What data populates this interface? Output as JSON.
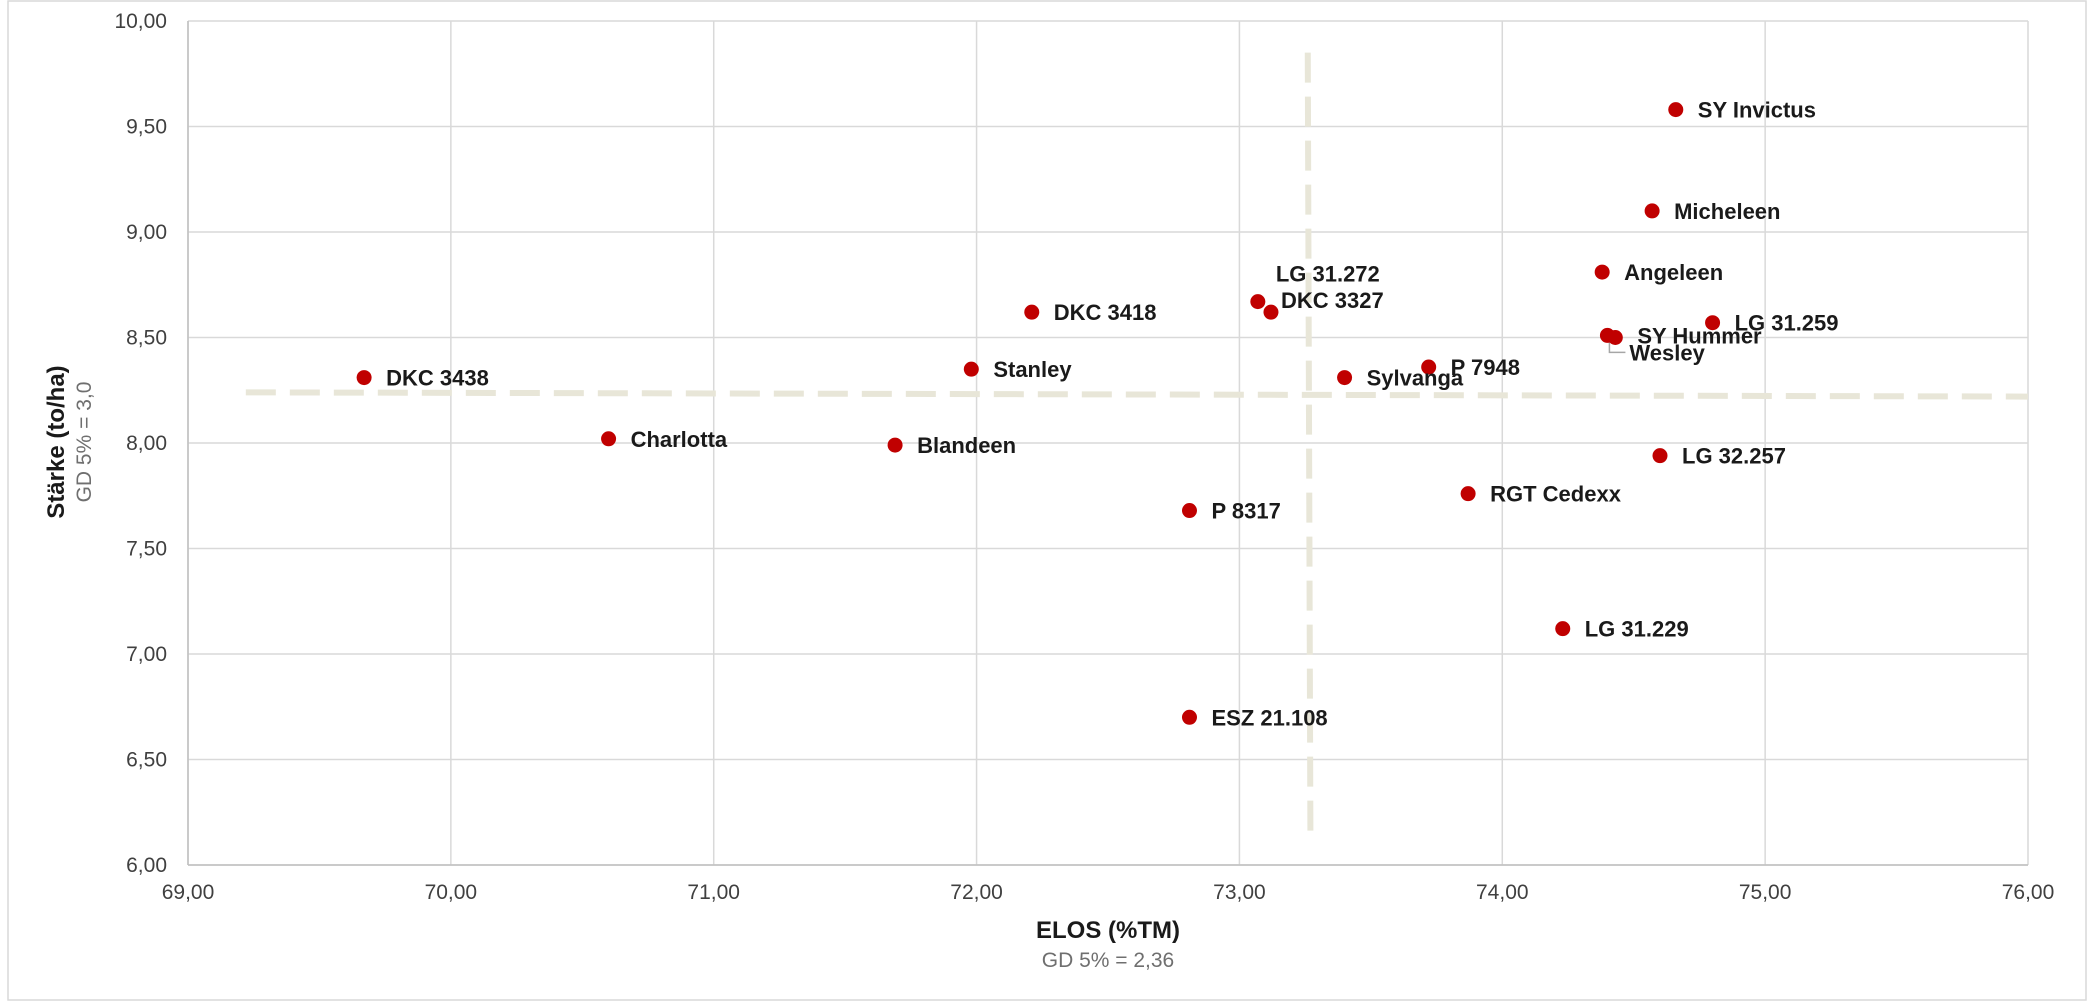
{
  "chart_data": {
    "type": "scatter",
    "xlabel": "ELOS (%TM)",
    "xlabel_sub": "GD 5% = 2,36",
    "ylabel": "Stärke (to/ha)",
    "ylabel_sub": "GD 5% = 3,0",
    "xlim": [
      69,
      76
    ],
    "ylim": [
      6,
      10
    ],
    "x_ticks": [
      "69,00",
      "70,00",
      "71,00",
      "72,00",
      "73,00",
      "74,00",
      "75,00",
      "76,00"
    ],
    "y_ticks": [
      "6,00",
      "6,50",
      "7,00",
      "7,50",
      "8,00",
      "8,50",
      "9,00",
      "9,50",
      "10,00"
    ],
    "grid": true,
    "point_color": "#c00000",
    "reference_line_color": "#e8e6d8",
    "reference_lines": {
      "vertical": {
        "x_top": 73.26,
        "x_bottom": 73.27,
        "y_top": 9.85,
        "y_bottom": 6.15
      },
      "horizontal": {
        "x_left": 69.22,
        "x_right": 76.0,
        "y_left": 8.24,
        "y_right": 8.22
      }
    },
    "points": [
      {
        "name": "SY Invictus",
        "x": 74.66,
        "y": 9.58
      },
      {
        "name": "Micheleen",
        "x": 74.57,
        "y": 9.1
      },
      {
        "name": "Angeleen",
        "x": 74.38,
        "y": 8.81
      },
      {
        "name": "LG 31.259",
        "x": 74.8,
        "y": 8.57
      },
      {
        "name": "SY Hummer",
        "x": 74.43,
        "y": 8.5
      },
      {
        "name": "Wesley",
        "x": 74.4,
        "y": 8.51
      },
      {
        "name": "LG 31.272",
        "x": 73.07,
        "y": 8.67
      },
      {
        "name": "DKC 3327",
        "x": 73.12,
        "y": 8.62
      },
      {
        "name": "DKC 3418",
        "x": 72.21,
        "y": 8.62
      },
      {
        "name": "DKC 3438",
        "x": 69.67,
        "y": 8.31
      },
      {
        "name": "Stanley",
        "x": 71.98,
        "y": 8.35
      },
      {
        "name": "Sylvanga",
        "x": 73.4,
        "y": 8.31
      },
      {
        "name": "P 7948",
        "x": 73.72,
        "y": 8.36
      },
      {
        "name": "Charlotta",
        "x": 70.6,
        "y": 8.02
      },
      {
        "name": "Blandeen",
        "x": 71.69,
        "y": 7.99
      },
      {
        "name": "LG 32.257",
        "x": 74.6,
        "y": 7.94
      },
      {
        "name": "RGT Cedexx",
        "x": 73.87,
        "y": 7.76
      },
      {
        "name": "P 8317",
        "x": 72.81,
        "y": 7.68
      },
      {
        "name": "LG 31.229",
        "x": 74.23,
        "y": 7.12
      },
      {
        "name": "ESZ 21.108",
        "x": 72.81,
        "y": 6.7
      }
    ]
  }
}
